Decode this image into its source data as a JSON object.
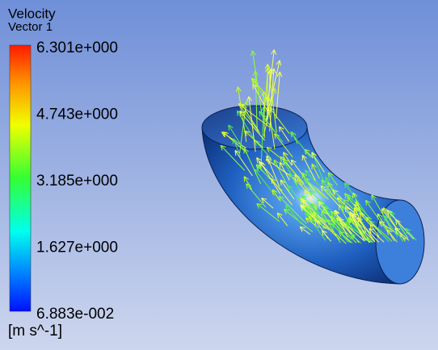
{
  "legend": {
    "title": "Velocity",
    "subtitle": "Vector 1",
    "labels": [
      "6.301e+000",
      "4.743e+000",
      "3.185e+000",
      "1.627e+000",
      "6.883e-002"
    ],
    "unit": "[m s^-1]"
  }
}
